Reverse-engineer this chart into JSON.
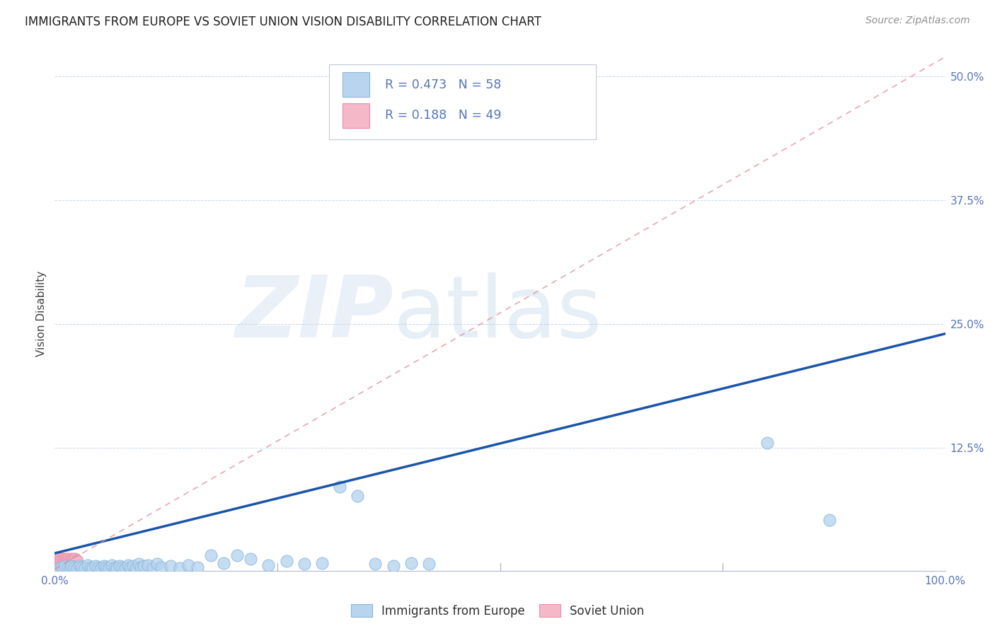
{
  "title": "IMMIGRANTS FROM EUROPE VS SOVIET UNION VISION DISABILITY CORRELATION CHART",
  "source": "Source: ZipAtlas.com",
  "ylabel": "Vision Disability",
  "xlim": [
    0.0,
    1.0
  ],
  "ylim": [
    0.0,
    0.52
  ],
  "yticks": [
    0.0,
    0.125,
    0.25,
    0.375,
    0.5
  ],
  "ytick_labels": [
    "",
    "12.5%",
    "25.0%",
    "37.5%",
    "50.0%"
  ],
  "xtick_labels": [
    "0.0%",
    "",
    "",
    "",
    "100.0%"
  ],
  "europe_fill": "#b8d4ee",
  "europe_edge": "#88b8de",
  "soviet_fill": "#f4b8c8",
  "soviet_edge": "#e890a8",
  "line_blue": "#1a55aa",
  "line_pink": "#e08898",
  "europe_R": 0.473,
  "europe_N": 58,
  "soviet_R": 0.188,
  "soviet_N": 49,
  "legend_label_europe": "Immigrants from Europe",
  "legend_label_soviet": "Soviet Union",
  "watermark_zip": "ZIP",
  "watermark_atlas": "atlas",
  "bg_color": "#ffffff",
  "grid_color": "#c8d8e8",
  "title_color": "#202020",
  "axis_tick_color": "#5575bb",
  "ylabel_color": "#404040",
  "europe_x": [
    0.005,
    0.008,
    0.01,
    0.012,
    0.015,
    0.017,
    0.019,
    0.022,
    0.025,
    0.028,
    0.031,
    0.034,
    0.037,
    0.04,
    0.043,
    0.046,
    0.049,
    0.052,
    0.055,
    0.058,
    0.061,
    0.064,
    0.067,
    0.07,
    0.073,
    0.076,
    0.079,
    0.082,
    0.085,
    0.088,
    0.091,
    0.094,
    0.097,
    0.1,
    0.105,
    0.11,
    0.115,
    0.12,
    0.13,
    0.14,
    0.15,
    0.16,
    0.175,
    0.19,
    0.205,
    0.22,
    0.24,
    0.26,
    0.28,
    0.3,
    0.32,
    0.34,
    0.36,
    0.38,
    0.4,
    0.42,
    0.8,
    0.87
  ],
  "europe_y": [
    0.003,
    0.004,
    0.003,
    0.005,
    0.004,
    0.003,
    0.005,
    0.004,
    0.003,
    0.005,
    0.004,
    0.003,
    0.006,
    0.004,
    0.003,
    0.005,
    0.004,
    0.003,
    0.005,
    0.004,
    0.003,
    0.006,
    0.004,
    0.003,
    0.005,
    0.004,
    0.003,
    0.006,
    0.004,
    0.005,
    0.003,
    0.007,
    0.004,
    0.005,
    0.006,
    0.003,
    0.007,
    0.004,
    0.005,
    0.003,
    0.006,
    0.004,
    0.016,
    0.008,
    0.016,
    0.012,
    0.006,
    0.01,
    0.007,
    0.008,
    0.085,
    0.076,
    0.007,
    0.005,
    0.008,
    0.007,
    0.13,
    0.052
  ],
  "soviet_x": [
    0.001,
    0.002,
    0.002,
    0.003,
    0.003,
    0.004,
    0.004,
    0.005,
    0.005,
    0.006,
    0.006,
    0.007,
    0.007,
    0.008,
    0.008,
    0.009,
    0.009,
    0.01,
    0.01,
    0.011,
    0.011,
    0.012,
    0.012,
    0.013,
    0.013,
    0.014,
    0.014,
    0.015,
    0.015,
    0.016,
    0.016,
    0.017,
    0.017,
    0.018,
    0.018,
    0.019,
    0.019,
    0.02,
    0.02,
    0.021,
    0.021,
    0.022,
    0.022,
    0.023,
    0.023,
    0.024,
    0.024,
    0.025,
    0.025
  ],
  "soviet_y": [
    0.005,
    0.01,
    0.003,
    0.012,
    0.004,
    0.01,
    0.003,
    0.013,
    0.004,
    0.011,
    0.003,
    0.012,
    0.004,
    0.011,
    0.003,
    0.01,
    0.004,
    0.012,
    0.003,
    0.011,
    0.004,
    0.01,
    0.003,
    0.012,
    0.004,
    0.01,
    0.003,
    0.012,
    0.004,
    0.011,
    0.003,
    0.01,
    0.004,
    0.012,
    0.003,
    0.011,
    0.004,
    0.01,
    0.003,
    0.012,
    0.004,
    0.01,
    0.003,
    0.012,
    0.004,
    0.011,
    0.003,
    0.01,
    0.004
  ],
  "blue_line": [
    [
      0.0,
      1.0
    ],
    [
      0.018,
      0.24
    ]
  ],
  "pink_line": [
    [
      0.0,
      1.0
    ],
    [
      0.002,
      0.52
    ]
  ]
}
